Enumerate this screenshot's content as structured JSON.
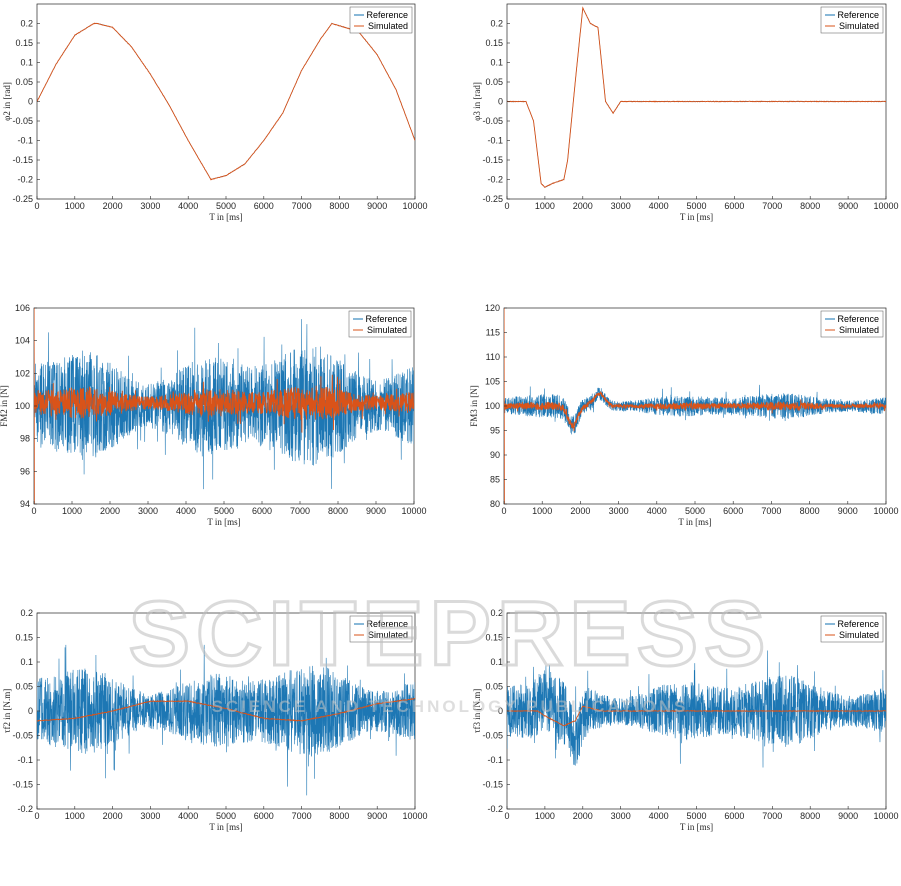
{
  "watermark": {
    "main_text": "SCITEPRESS",
    "sub_text": "SCIENCE AND TECHNOLOGY PUBLICATIONS",
    "color": "#cfcfcf"
  },
  "colors": {
    "reference": "#1170b0",
    "reference_light": "#2a9ad8",
    "simulated": "#d95319",
    "axis": "#262626",
    "grid": "#ffffff"
  },
  "chart_data": [
    {
      "id": "phi2",
      "type": "line",
      "signal_kind": "sine",
      "xlabel": "T in [ms]",
      "ylabel": "φ2 in [rad]",
      "xlim": [
        0,
        10000
      ],
      "ylim": [
        -0.25,
        0.25
      ],
      "xticks": [
        "0",
        "1000",
        "2000",
        "3000",
        "4000",
        "5000",
        "6000",
        "7000",
        "8000",
        "9000",
        "10000"
      ],
      "yticks": [
        "0.2",
        "0.15",
        "0.1",
        "0.05",
        "0",
        "-0.05",
        "-0.1",
        "-0.15",
        "-0.2",
        "-0.25"
      ],
      "legend": [
        "Reference",
        "Simulated"
      ],
      "legend_position": "top-right",
      "series": [
        {
          "name": "Reference",
          "x": [
            0,
            500,
            1000,
            1500,
            1600,
            2000,
            2500,
            3000,
            3500,
            4000,
            4600,
            5000,
            5500,
            6000,
            6500,
            7000,
            7500,
            7800,
            8500,
            9000,
            9500,
            10000
          ],
          "values": [
            0,
            0.095,
            0.17,
            0.2,
            0.2,
            0.19,
            0.14,
            0.07,
            -0.01,
            -0.1,
            -0.2,
            -0.19,
            -0.16,
            -0.1,
            -0.03,
            0.08,
            0.16,
            0.2,
            0.18,
            0.12,
            0.03,
            -0.1
          ]
        },
        {
          "name": "Simulated",
          "x": [
            0,
            500,
            1000,
            1500,
            1600,
            2000,
            2500,
            3000,
            3500,
            4000,
            4600,
            5000,
            5500,
            6000,
            6500,
            7000,
            7500,
            7800,
            8500,
            9000,
            9500,
            10000
          ],
          "values": [
            0,
            0.095,
            0.17,
            0.2,
            0.2,
            0.19,
            0.14,
            0.07,
            -0.01,
            -0.1,
            -0.2,
            -0.19,
            -0.16,
            -0.1,
            -0.03,
            0.08,
            0.16,
            0.2,
            0.18,
            0.12,
            0.03,
            -0.1
          ]
        }
      ]
    },
    {
      "id": "phi3",
      "type": "line",
      "signal_kind": "pulse",
      "xlabel": "T in [ms]",
      "ylabel": "φ3 in [rad]",
      "xlim": [
        0,
        10000
      ],
      "ylim": [
        -0.25,
        0.25
      ],
      "xticks": [
        "0",
        "1000",
        "2000",
        "3000",
        "4000",
        "5000",
        "6000",
        "7000",
        "8000",
        "9000",
        "10000"
      ],
      "yticks": [
        "0.2",
        "0.15",
        "0.1",
        "0.05",
        "0",
        "-0.05",
        "-0.1",
        "-0.15",
        "-0.2",
        "-0.25"
      ],
      "legend": [
        "Reference",
        "Simulated"
      ],
      "legend_position": "top-right",
      "series": [
        {
          "name": "Reference",
          "x": [
            0,
            500,
            700,
            900,
            1000,
            1200,
            1500,
            1600,
            1800,
            2000,
            2200,
            2400,
            2600,
            2800,
            3000,
            10000
          ],
          "values": [
            0,
            0,
            -0.05,
            -0.21,
            -0.22,
            -0.21,
            -0.2,
            -0.15,
            0.05,
            0.24,
            0.2,
            0.19,
            0.0,
            -0.03,
            0,
            0
          ]
        },
        {
          "name": "Simulated",
          "x": [
            0,
            500,
            700,
            900,
            1000,
            1200,
            1500,
            1600,
            1800,
            2000,
            2200,
            2400,
            2600,
            2800,
            3000,
            10000
          ],
          "values": [
            0,
            0,
            -0.05,
            -0.21,
            -0.22,
            -0.21,
            -0.2,
            -0.15,
            0.05,
            0.24,
            0.2,
            0.19,
            0.0,
            -0.03,
            0,
            0
          ]
        }
      ]
    },
    {
      "id": "fm2",
      "type": "line",
      "signal_kind": "noise",
      "xlabel": "T in [ms]",
      "ylabel": "FM2 in [N]",
      "xlim": [
        0,
        10000
      ],
      "ylim": [
        94,
        106
      ],
      "xticks": [
        "0",
        "1000",
        "2000",
        "3000",
        "4000",
        "5000",
        "6000",
        "7000",
        "8000",
        "9000",
        "10000"
      ],
      "yticks": [
        "106",
        "104",
        "102",
        "100",
        "98",
        "96",
        "94"
      ],
      "legend": [
        "Reference",
        "Simulated"
      ],
      "legend_position": "top-right",
      "series": [
        {
          "name": "Reference",
          "center": 100,
          "amplitude": 3.5
        },
        {
          "name": "Simulated",
          "center": 100.2,
          "amplitude": 1.0
        }
      ]
    },
    {
      "id": "fm3",
      "type": "line",
      "signal_kind": "noise",
      "xlabel": "T in [ms]",
      "ylabel": "FM3 in [N]",
      "xlim": [
        0,
        10000
      ],
      "ylim": [
        80,
        120
      ],
      "xticks": [
        "0",
        "1000",
        "2000",
        "3000",
        "4000",
        "5000",
        "6000",
        "7000",
        "8000",
        "9000",
        "10000"
      ],
      "yticks": [
        "120",
        "115",
        "110",
        "105",
        "100",
        "95",
        "90",
        "85",
        "80"
      ],
      "legend": [
        "Reference",
        "Simulated"
      ],
      "legend_position": "top-right",
      "series": [
        {
          "name": "Reference",
          "center": 100,
          "amplitude": 2.5,
          "dip_at": 1800,
          "dip_depth": -4,
          "bump_at": 2500,
          "bump_height": 2.5
        },
        {
          "name": "Simulated",
          "center": 100,
          "amplitude": 0.8,
          "dip_at": 1800,
          "dip_depth": -4,
          "bump_at": 2500,
          "bump_height": 2.5
        }
      ]
    },
    {
      "id": "tau2",
      "type": "line",
      "signal_kind": "noise",
      "xlabel": "T in [ms]",
      "ylabel": "τf2 in [N.m]",
      "xlim": [
        0,
        10000
      ],
      "ylim": [
        -0.2,
        0.2
      ],
      "xticks": [
        "0",
        "1000",
        "2000",
        "3000",
        "4000",
        "5000",
        "6000",
        "7000",
        "8000",
        "9000",
        "10000"
      ],
      "yticks": [
        "0.2",
        "0.15",
        "0.1",
        "0.05",
        "0",
        "-0.05",
        "-0.1",
        "-0.15",
        "-0.2"
      ],
      "legend": [
        "Reference",
        "Simulated"
      ],
      "legend_position": "top-right",
      "series": [
        {
          "name": "Reference",
          "center": 0,
          "amplitude": 0.09
        },
        {
          "name": "Simulated",
          "x": [
            0,
            1000,
            2000,
            3000,
            4000,
            5000,
            6000,
            7000,
            8000,
            9000,
            10000
          ],
          "values": [
            -0.02,
            -0.015,
            0,
            0.02,
            0.02,
            0.005,
            -0.015,
            -0.02,
            -0.005,
            0.015,
            0.025
          ]
        }
      ]
    },
    {
      "id": "tau3",
      "type": "line",
      "signal_kind": "noise",
      "xlabel": "T in [ms]",
      "ylabel": "τf3 in [N.m]",
      "xlim": [
        0,
        10000
      ],
      "ylim": [
        -0.2,
        0.2
      ],
      "xticks": [
        "0",
        "1000",
        "2000",
        "3000",
        "4000",
        "5000",
        "6000",
        "7000",
        "8000",
        "9000",
        "10000"
      ],
      "yticks": [
        "0.2",
        "0.15",
        "0.1",
        "0.05",
        "0",
        "-0.05",
        "-0.1",
        "-0.15",
        "-0.2"
      ],
      "legend": [
        "Reference",
        "Simulated"
      ],
      "legend_position": "top-right",
      "series": [
        {
          "name": "Reference",
          "center": 0,
          "amplitude": 0.07,
          "dip_at": 1800,
          "dip_depth": -0.06,
          "bump_at": 1000,
          "bump_height": 0.03
        },
        {
          "name": "Simulated",
          "x": [
            0,
            800,
            1000,
            1500,
            1800,
            2000,
            2500,
            3000,
            10000
          ],
          "values": [
            0,
            0,
            -0.01,
            -0.03,
            -0.02,
            0.01,
            0,
            0,
            0
          ]
        }
      ]
    }
  ]
}
